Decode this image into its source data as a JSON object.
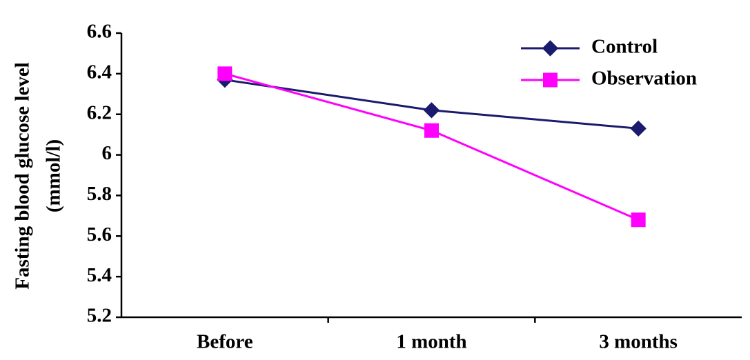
{
  "chart_data": {
    "type": "line",
    "ylabel": [
      "Fasting blood glucose level",
      "(mmol/l)"
    ],
    "categories": [
      "Before",
      "1 month",
      "3 months"
    ],
    "series": [
      {
        "name": "Control",
        "color": "#1a1a6e",
        "marker": "diamond",
        "values": [
          6.37,
          6.22,
          6.13
        ]
      },
      {
        "name": "Observation",
        "color": "#ff00ff",
        "marker": "square",
        "values": [
          6.4,
          6.12,
          5.68
        ]
      }
    ],
    "ylim": [
      5.2,
      6.6
    ],
    "yticks": [
      5.2,
      5.4,
      5.6,
      5.8,
      6,
      6.2,
      6.4,
      6.6
    ],
    "grid": false,
    "legend": "top-right"
  }
}
